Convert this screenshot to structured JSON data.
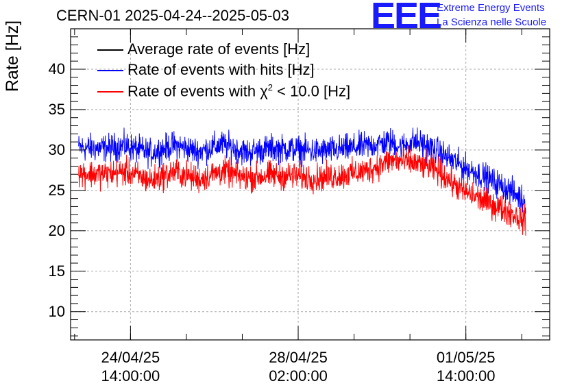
{
  "chart_data": {
    "type": "line",
    "title": "CERN-01 2025-04-24--2025-05-03",
    "ylabel": "Rate [Hz]",
    "xlabel": "",
    "ylim": [
      6.5,
      45
    ],
    "yticks": [
      10,
      15,
      20,
      25,
      30,
      35,
      40
    ],
    "x_ticks": [
      {
        "date": "24/04/25",
        "time": "14:00:00"
      },
      {
        "date": "28/04/25",
        "time": "02:00:00"
      },
      {
        "date": "01/05/25",
        "time": "14:00:00"
      }
    ],
    "grid": true,
    "legend_position": "top-left",
    "legend": {
      "average": "Average rate of events [Hz]",
      "hits": "Rate of events with hits [Hz]",
      "chi2_prefix": "Rate of events with ",
      "chi2_symbol": "χ",
      "chi2_sup": "2",
      "chi2_suffix": " < 10.0 [Hz]"
    },
    "series": [
      {
        "name": "Average rate of events [Hz]",
        "color": "#000000",
        "x": [],
        "values": []
      },
      {
        "name": "Rate of events with hits [Hz]",
        "color": "#0000ff",
        "x": [
          "2025-04-23 12:00",
          "2025-04-24 00:00",
          "2025-04-24 12:00",
          "2025-04-25 00:00",
          "2025-04-25 12:00",
          "2025-04-26 00:00",
          "2025-04-26 12:00",
          "2025-04-27 00:00",
          "2025-04-27 12:00",
          "2025-04-28 00:00",
          "2025-04-28 12:00",
          "2025-04-29 00:00",
          "2025-04-29 12:00",
          "2025-04-30 00:00",
          "2025-04-30 06:00",
          "2025-04-30 12:00",
          "2025-04-30 18:00",
          "2025-05-01 00:00",
          "2025-05-01 12:00",
          "2025-05-02 00:00",
          "2025-05-02 12:00",
          "2025-05-02 20:00"
        ],
        "values": [
          30.3,
          30.2,
          30.5,
          29.6,
          30.6,
          29.8,
          30.7,
          29.7,
          30.2,
          30.1,
          29.8,
          30.1,
          30.5,
          31.0,
          30.4,
          31.1,
          30.6,
          29.8,
          28.0,
          26.6,
          25.0,
          23.6
        ]
      },
      {
        "name": "Rate of events with χ2 < 10.0 [Hz]",
        "color": "#ff0000",
        "x": [
          "2025-04-23 12:00",
          "2025-04-24 00:00",
          "2025-04-24 12:00",
          "2025-04-25 00:00",
          "2025-04-25 12:00",
          "2025-04-26 00:00",
          "2025-04-26 12:00",
          "2025-04-27 00:00",
          "2025-04-27 12:00",
          "2025-04-28 00:00",
          "2025-04-28 12:00",
          "2025-04-29 00:00",
          "2025-04-29 12:00",
          "2025-04-30 00:00",
          "2025-04-30 06:00",
          "2025-04-30 12:00",
          "2025-04-30 18:00",
          "2025-05-01 00:00",
          "2025-05-01 12:00",
          "2025-05-02 00:00",
          "2025-05-02 12:00",
          "2025-05-02 20:00"
        ],
        "values": [
          27.1,
          27.0,
          27.3,
          26.2,
          27.3,
          26.4,
          27.4,
          26.5,
          26.9,
          26.8,
          26.5,
          26.9,
          27.4,
          28.7,
          28.6,
          28.4,
          28.0,
          27.4,
          25.0,
          23.6,
          22.3,
          21.2
        ]
      }
    ]
  },
  "logo": {
    "mark": "EEE",
    "line1": "Extreme Energy Events",
    "line2": "La Scienza nelle Scuole"
  }
}
